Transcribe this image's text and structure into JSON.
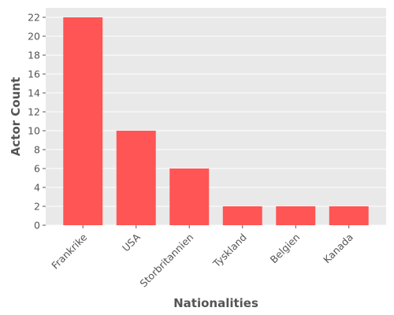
{
  "chart_data": {
    "type": "bar",
    "categories": [
      "Frankrike",
      "USA",
      "Storbritannien",
      "Tyskland",
      "Belgien",
      "Kanada"
    ],
    "values": [
      22,
      10,
      6,
      2,
      2,
      2
    ],
    "xlabel": "Nationalities",
    "ylabel": "Actor Count",
    "ylim": [
      0,
      23
    ],
    "yticks": [
      0,
      2,
      4,
      6,
      8,
      10,
      12,
      14,
      16,
      18,
      20,
      22
    ],
    "grid": true,
    "bar_color": "#ff5555",
    "plot_background": "#e9e9e9",
    "grid_color": "#ffffff",
    "text_color": "#555555"
  }
}
